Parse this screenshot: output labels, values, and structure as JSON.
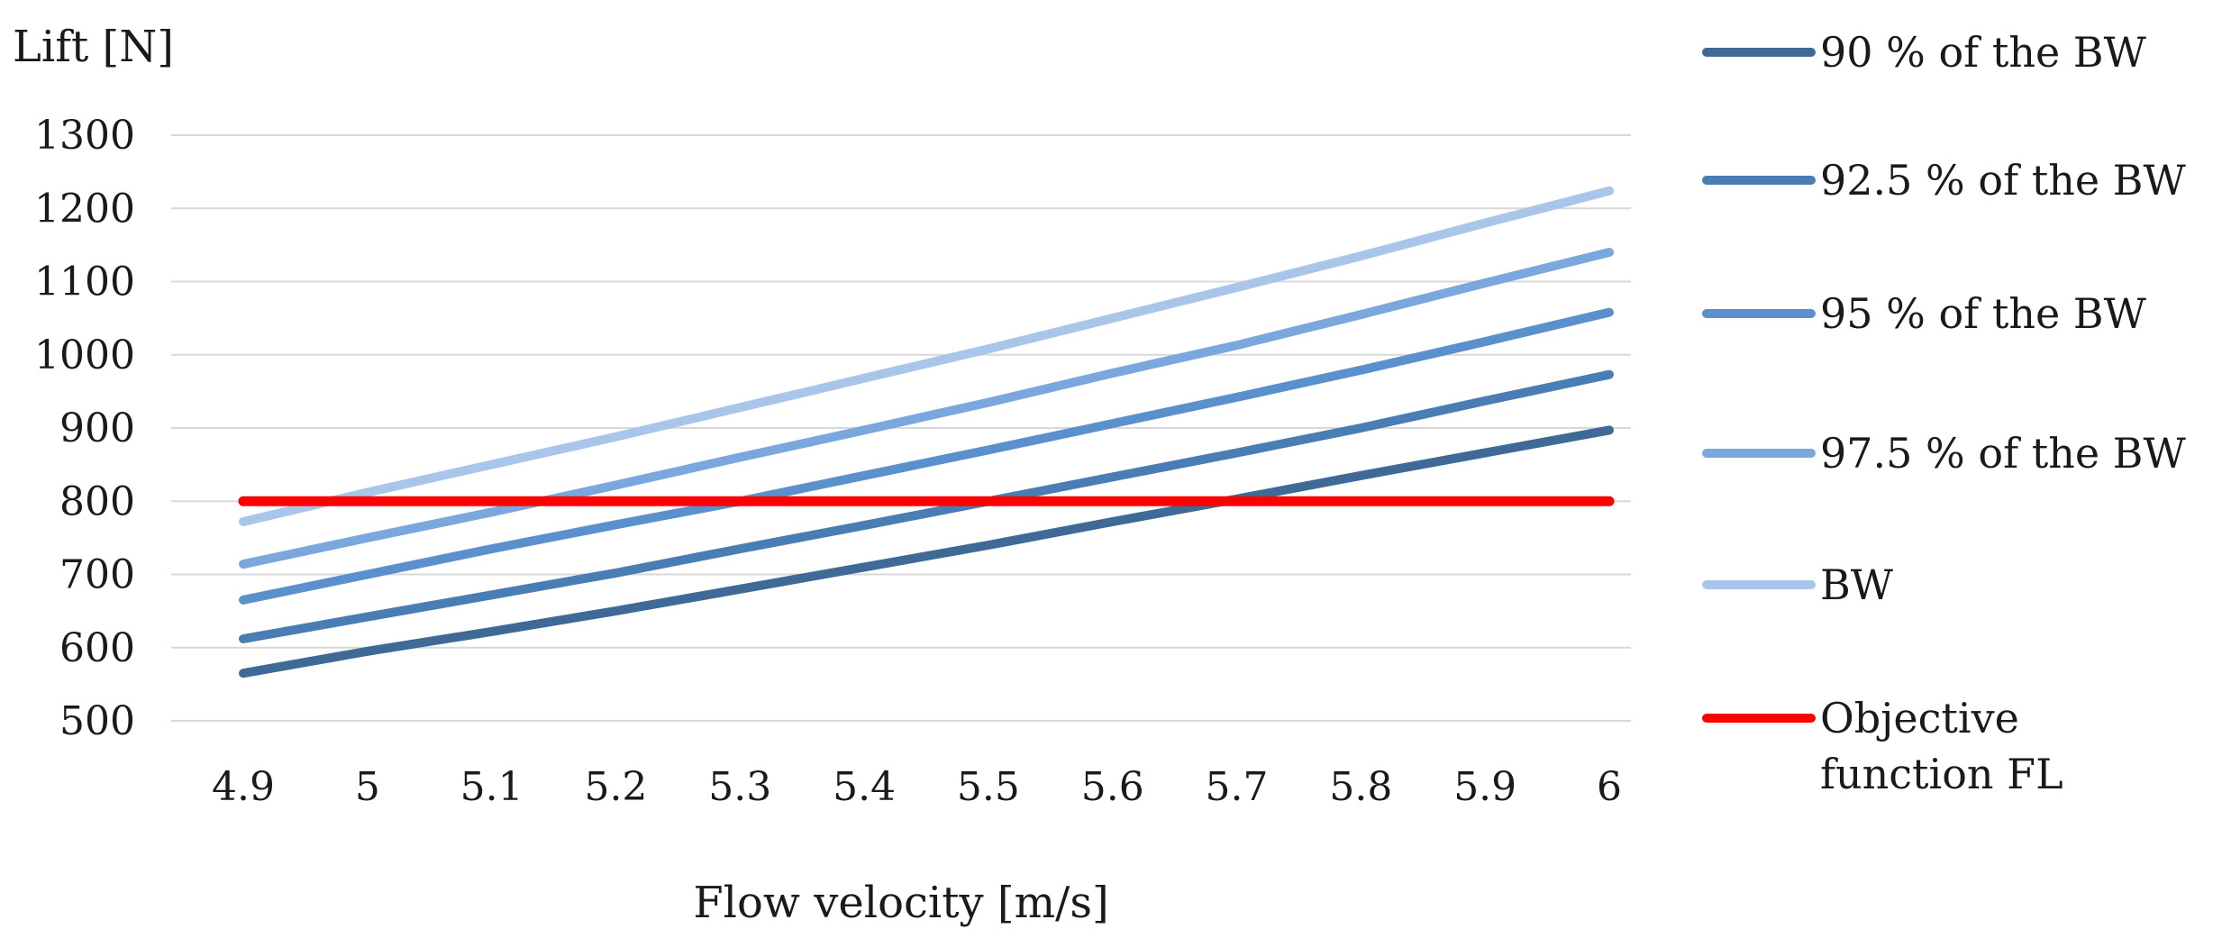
{
  "chart_data": {
    "type": "line",
    "title": "",
    "ylabel": "Lift [N]",
    "xlabel": "Flow velocity [m/s]",
    "x": [
      "4.9",
      "5",
      "5.1",
      "5.2",
      "5.3",
      "5.4",
      "5.5",
      "5.6",
      "5.7",
      "5.8",
      "5.9",
      "6"
    ],
    "ylim": [
      500,
      1300
    ],
    "yticks": [
      "500",
      "600",
      "700",
      "800",
      "900",
      "1000",
      "1100",
      "1200",
      "1300"
    ],
    "grid": true,
    "legend_position": "right",
    "series": [
      {
        "name": "90 % of the BW",
        "color": "#3f6a96",
        "values": [
          565,
          595,
          622,
          650,
          680,
          710,
          740,
          772,
          803,
          835,
          866,
          897
        ]
      },
      {
        "name": "92.5 % of the BW",
        "color": "#4a7db4",
        "values": [
          612,
          642,
          672,
          702,
          735,
          767,
          800,
          833,
          866,
          900,
          937,
          973
        ]
      },
      {
        "name": "95 % of the BW",
        "color": "#5a91cc",
        "values": [
          665,
          700,
          735,
          768,
          800,
          835,
          870,
          906,
          942,
          979,
          1018,
          1058
        ]
      },
      {
        "name": "97.5 % of the BW",
        "color": "#7aa8dc",
        "values": [
          714,
          750,
          785,
          822,
          860,
          897,
          935,
          975,
          1013,
          1055,
          1098,
          1140
        ]
      },
      {
        "name": "BW",
        "color": "#a9c6ea",
        "values": [
          772,
          812,
          850,
          888,
          928,
          968,
          1008,
          1050,
          1092,
          1135,
          1180,
          1224
        ]
      },
      {
        "name": "Objective function FL",
        "name_lines": [
          "Objective",
          "function FL"
        ],
        "color": "#ff0000",
        "values": [
          800,
          800,
          800,
          800,
          800,
          800,
          800,
          800,
          800,
          800,
          800,
          800
        ]
      }
    ]
  }
}
